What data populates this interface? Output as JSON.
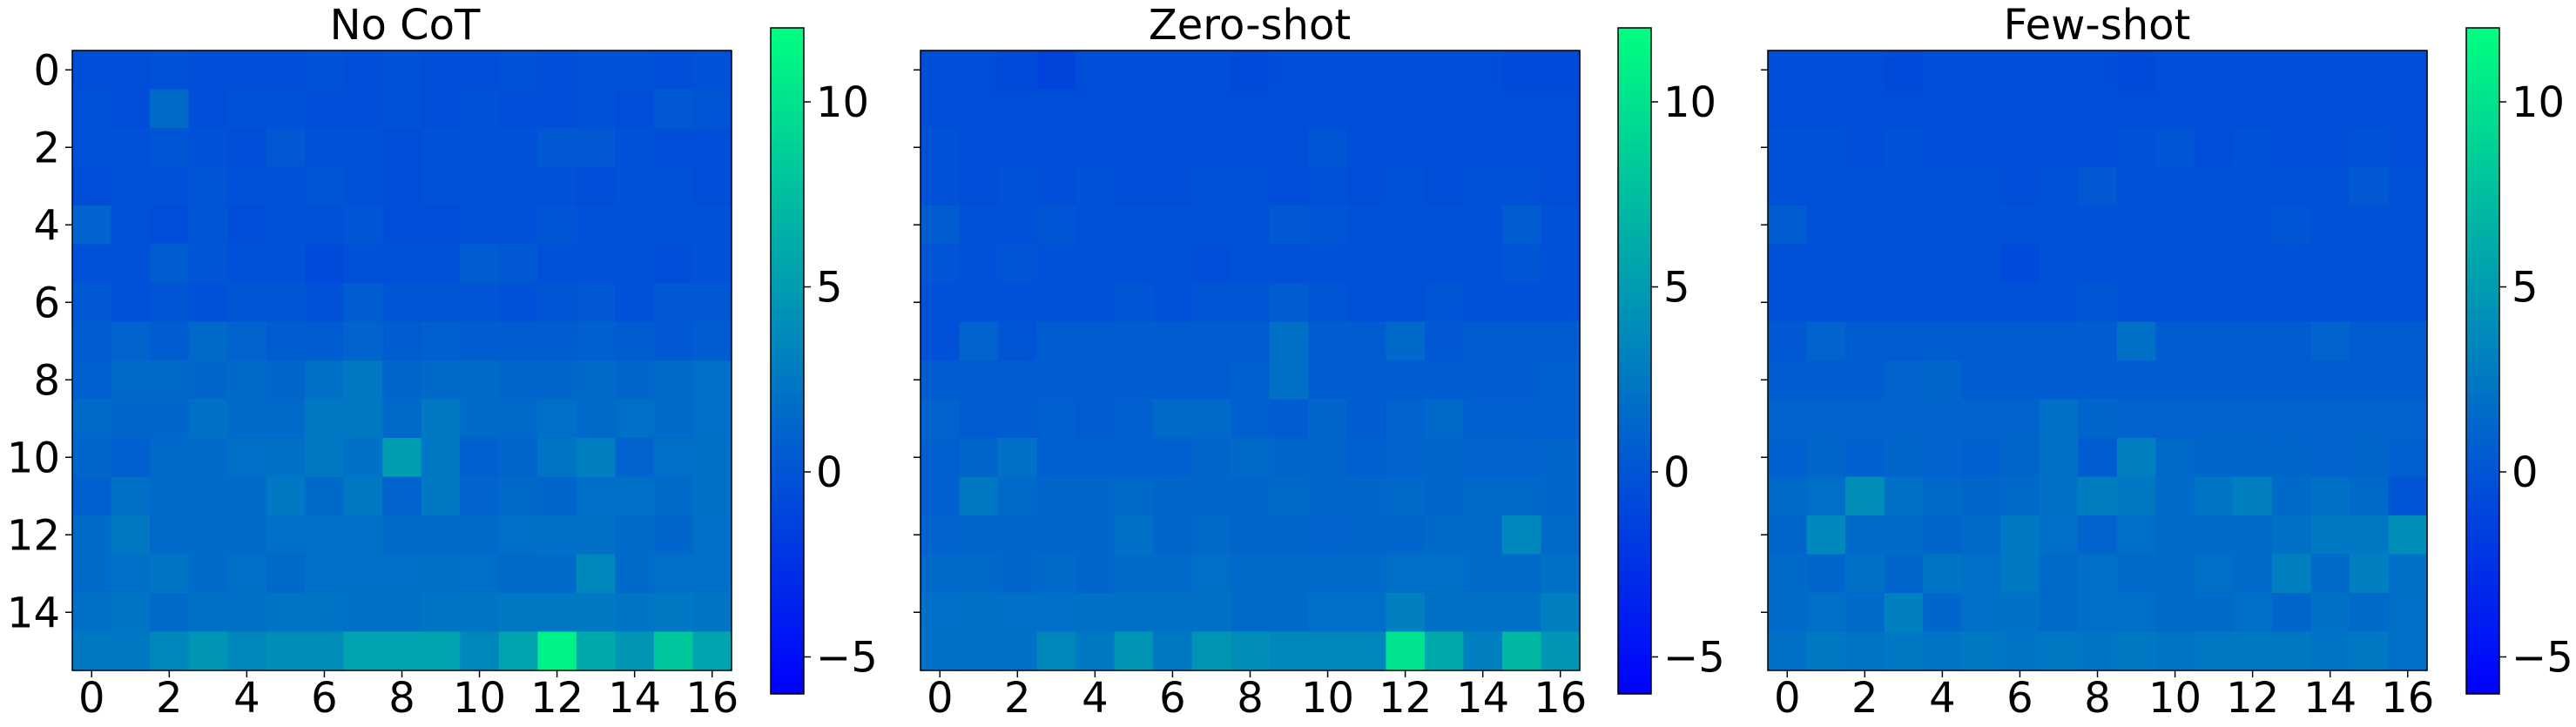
{
  "chart_data": [
    {
      "type": "heatmap",
      "title": "No CoT",
      "rows": 16,
      "cols": 17,
      "x_ticks": [
        0,
        2,
        4,
        6,
        8,
        10,
        12,
        14,
        16
      ],
      "y_ticks": [
        0,
        2,
        4,
        6,
        8,
        10,
        12,
        14
      ],
      "values": [
        [
          -0.5,
          -0.5,
          -0.3,
          -0.5,
          -0.5,
          -0.5,
          -0.3,
          -0.5,
          -0.3,
          -0.5,
          -0.5,
          -0.3,
          -0.5,
          -0.3,
          -0.3,
          -0.5,
          -0.3
        ],
        [
          -0.3,
          -0.5,
          1.5,
          -0.5,
          -0.3,
          -0.3,
          -0.5,
          -0.5,
          -0.3,
          -0.5,
          -0.3,
          -0.5,
          -0.5,
          -0.3,
          -0.5,
          0.2,
          0.0
        ],
        [
          -0.3,
          -0.3,
          0.0,
          -0.3,
          -0.5,
          0.2,
          -0.3,
          -0.3,
          -0.5,
          -0.3,
          -0.3,
          -0.3,
          0.2,
          0.2,
          -0.3,
          -0.5,
          -0.5
        ],
        [
          -0.5,
          -0.3,
          -0.3,
          0.0,
          -0.3,
          -0.3,
          0.0,
          -0.3,
          -0.5,
          -0.3,
          -0.3,
          -0.3,
          -0.3,
          -0.5,
          -0.3,
          -0.3,
          -0.5
        ],
        [
          1.0,
          -0.3,
          -0.5,
          0.0,
          -0.5,
          -0.3,
          -0.3,
          0.0,
          -0.5,
          -0.5,
          -0.3,
          -0.3,
          0.0,
          -0.3,
          -0.3,
          -0.3,
          -0.3
        ],
        [
          -0.3,
          -0.3,
          0.5,
          0.0,
          -0.3,
          -0.3,
          -0.8,
          -0.3,
          -0.3,
          -0.3,
          0.5,
          0.2,
          -0.3,
          -0.3,
          -0.3,
          -0.5,
          -0.3
        ],
        [
          0.2,
          -0.3,
          0.0,
          -0.3,
          0.0,
          0.0,
          -0.3,
          0.5,
          0.0,
          0.0,
          0.0,
          -0.3,
          0.0,
          0.2,
          -0.3,
          0.2,
          0.2
        ],
        [
          0.5,
          1.0,
          0.5,
          1.5,
          1.0,
          0.5,
          0.5,
          1.0,
          0.5,
          0.8,
          0.5,
          0.5,
          0.5,
          0.8,
          0.5,
          0.2,
          0.5
        ],
        [
          0.8,
          1.5,
          1.5,
          1.2,
          1.5,
          1.2,
          2.0,
          2.5,
          1.2,
          1.5,
          1.5,
          1.2,
          1.2,
          1.5,
          1.2,
          1.5,
          1.8
        ],
        [
          1.5,
          1.2,
          1.2,
          2.0,
          1.5,
          1.5,
          2.5,
          2.5,
          1.5,
          2.5,
          1.5,
          1.5,
          1.8,
          1.5,
          1.8,
          1.5,
          1.8
        ],
        [
          1.2,
          0.8,
          1.5,
          1.5,
          1.8,
          2.0,
          2.5,
          2.0,
          5.0,
          2.5,
          0.8,
          1.2,
          2.2,
          3.0,
          1.0,
          1.8,
          2.0
        ],
        [
          0.8,
          2.0,
          1.5,
          1.5,
          1.5,
          2.5,
          1.5,
          2.5,
          1.0,
          2.5,
          1.0,
          1.5,
          1.2,
          1.8,
          1.8,
          1.5,
          2.0
        ],
        [
          1.5,
          2.5,
          1.5,
          1.5,
          1.5,
          1.8,
          1.8,
          1.8,
          1.5,
          1.5,
          1.5,
          1.8,
          2.0,
          2.0,
          1.5,
          1.2,
          1.8
        ],
        [
          1.5,
          1.8,
          2.2,
          1.5,
          1.8,
          1.5,
          1.8,
          1.8,
          1.8,
          2.0,
          1.8,
          1.5,
          1.5,
          3.5,
          1.5,
          1.8,
          1.8
        ],
        [
          2.0,
          2.2,
          1.5,
          2.0,
          2.0,
          2.2,
          2.2,
          2.0,
          2.0,
          2.2,
          2.2,
          2.5,
          2.5,
          2.5,
          2.2,
          2.5,
          2.2
        ],
        [
          2.5,
          2.5,
          3.5,
          4.5,
          3.5,
          4.0,
          4.0,
          5.5,
          5.5,
          5.5,
          3.5,
          5.5,
          11.0,
          6.0,
          4.5,
          8.0,
          5.5
        ]
      ]
    },
    {
      "type": "heatmap",
      "title": "Zero-shot",
      "rows": 16,
      "cols": 17,
      "x_ticks": [
        0,
        2,
        4,
        6,
        8,
        10,
        12,
        14,
        16
      ],
      "y_ticks": [
        0,
        2,
        4,
        6,
        8,
        10,
        12,
        14
      ],
      "values": [
        [
          -0.5,
          -0.5,
          -0.8,
          -1.2,
          -0.5,
          -0.5,
          -0.5,
          -0.5,
          -0.8,
          -0.5,
          -0.5,
          -0.5,
          -0.5,
          -0.5,
          -0.5,
          -0.8,
          -0.8
        ],
        [
          -0.5,
          -0.5,
          -0.5,
          -0.5,
          -0.5,
          -0.5,
          -0.5,
          -0.5,
          -0.5,
          -0.5,
          -0.5,
          -0.5,
          -0.5,
          -0.5,
          -0.5,
          -0.5,
          -0.5
        ],
        [
          -0.3,
          -0.5,
          -0.5,
          -0.5,
          -0.5,
          -0.5,
          -0.5,
          -0.5,
          -0.5,
          -0.5,
          0.0,
          -0.5,
          -0.5,
          -0.5,
          -0.5,
          -0.5,
          -0.5
        ],
        [
          -0.3,
          -0.5,
          -0.3,
          -0.5,
          -0.3,
          -0.5,
          -0.5,
          -0.3,
          -0.3,
          -0.5,
          -0.3,
          -0.5,
          -0.3,
          -0.5,
          -0.3,
          -0.3,
          -0.5
        ],
        [
          0.5,
          -0.3,
          -0.3,
          0.0,
          -0.3,
          -0.3,
          -0.3,
          -0.3,
          -0.3,
          0.2,
          0.0,
          -0.3,
          -0.3,
          -0.3,
          -0.3,
          0.5,
          -0.3
        ],
        [
          0.0,
          -0.3,
          0.0,
          -0.3,
          -0.3,
          -0.3,
          -0.3,
          -0.5,
          -0.3,
          -0.3,
          -0.3,
          -0.3,
          -0.3,
          -0.3,
          -0.3,
          0.0,
          -0.3
        ],
        [
          -0.3,
          -0.3,
          -0.3,
          -0.3,
          -0.3,
          0.0,
          -0.3,
          0.0,
          0.0,
          0.5,
          0.0,
          -0.3,
          -0.3,
          0.0,
          -0.3,
          -0.3,
          -0.3
        ],
        [
          -0.3,
          1.0,
          0.0,
          0.5,
          0.5,
          0.5,
          0.5,
          0.5,
          0.5,
          2.0,
          0.5,
          0.5,
          1.5,
          0.2,
          0.5,
          0.5,
          0.5
        ],
        [
          0.5,
          0.5,
          0.5,
          0.5,
          0.5,
          0.5,
          0.5,
          0.5,
          0.8,
          2.0,
          0.5,
          0.5,
          0.5,
          0.5,
          0.5,
          0.5,
          0.8
        ],
        [
          1.0,
          0.5,
          0.5,
          0.8,
          0.5,
          0.8,
          1.5,
          1.5,
          0.8,
          0.5,
          1.2,
          0.5,
          1.0,
          1.5,
          0.8,
          0.8,
          0.8
        ],
        [
          0.8,
          1.2,
          2.0,
          0.8,
          0.8,
          0.8,
          0.8,
          1.2,
          1.5,
          1.2,
          1.2,
          0.8,
          1.0,
          1.2,
          1.0,
          1.0,
          1.2
        ],
        [
          0.8,
          2.5,
          1.5,
          1.2,
          1.2,
          1.5,
          1.2,
          1.2,
          1.2,
          1.5,
          1.2,
          1.2,
          1.5,
          1.2,
          1.5,
          1.5,
          1.2
        ],
        [
          1.0,
          1.2,
          1.2,
          1.2,
          1.2,
          2.0,
          1.2,
          1.5,
          1.2,
          1.2,
          1.0,
          1.2,
          1.2,
          1.5,
          1.5,
          3.5,
          1.5
        ],
        [
          1.5,
          1.5,
          1.2,
          1.5,
          1.2,
          1.5,
          1.5,
          1.8,
          1.5,
          1.5,
          1.5,
          1.5,
          1.8,
          1.8,
          1.5,
          1.5,
          2.0
        ],
        [
          1.8,
          2.0,
          1.8,
          1.8,
          2.0,
          2.0,
          2.0,
          2.0,
          1.5,
          1.5,
          1.8,
          1.8,
          3.0,
          2.0,
          2.0,
          2.0,
          3.0
        ],
        [
          2.0,
          2.0,
          2.0,
          3.5,
          2.5,
          4.5,
          2.5,
          4.5,
          4.0,
          3.5,
          3.5,
          3.5,
          10.0,
          6.0,
          3.0,
          7.0,
          4.5
        ]
      ]
    },
    {
      "type": "heatmap",
      "title": "Few-shot",
      "rows": 16,
      "cols": 17,
      "x_ticks": [
        0,
        2,
        4,
        6,
        8,
        10,
        12,
        14,
        16
      ],
      "y_ticks": [
        0,
        2,
        4,
        6,
        8,
        10,
        12,
        14
      ],
      "values": [
        [
          -0.5,
          -0.5,
          -0.5,
          -0.8,
          -0.5,
          -0.5,
          -0.5,
          -0.5,
          -0.5,
          -0.8,
          -0.5,
          -0.5,
          -0.5,
          -0.5,
          -0.5,
          -0.5,
          -0.5
        ],
        [
          -0.5,
          -0.5,
          -0.5,
          -0.5,
          -0.5,
          -0.5,
          -0.5,
          -0.5,
          -0.5,
          -0.5,
          -0.5,
          -0.5,
          -0.5,
          -0.5,
          -0.5,
          -0.5,
          -0.5
        ],
        [
          -0.3,
          -0.3,
          -0.5,
          -0.3,
          -0.5,
          -0.5,
          -0.5,
          -0.5,
          -0.5,
          -0.3,
          0.0,
          -0.5,
          -0.3,
          -0.5,
          -0.5,
          -0.3,
          -0.5
        ],
        [
          -0.3,
          -0.3,
          -0.3,
          -0.3,
          -0.3,
          -0.3,
          -0.5,
          -0.3,
          0.2,
          -0.3,
          -0.3,
          -0.3,
          -0.3,
          -0.3,
          -0.3,
          0.2,
          -0.3
        ],
        [
          0.5,
          -0.3,
          -0.3,
          -0.3,
          -0.3,
          -0.3,
          -0.3,
          -0.3,
          -0.3,
          -0.3,
          -0.3,
          -0.3,
          -0.3,
          0.0,
          -0.3,
          -0.3,
          -0.3
        ],
        [
          -0.3,
          -0.3,
          -0.3,
          -0.3,
          -0.3,
          -0.3,
          -0.8,
          -0.3,
          -0.3,
          -0.3,
          -0.3,
          -0.3,
          -0.3,
          -0.3,
          -0.3,
          -0.3,
          -0.3
        ],
        [
          -0.3,
          -0.3,
          -0.3,
          -0.3,
          -0.3,
          -0.3,
          -0.3,
          -0.3,
          0.0,
          -0.3,
          -0.3,
          -0.3,
          -0.3,
          -0.3,
          -0.3,
          -0.3,
          -0.3
        ],
        [
          0.2,
          1.0,
          0.5,
          0.5,
          0.5,
          0.5,
          0.5,
          0.5,
          0.5,
          2.0,
          0.5,
          0.5,
          0.5,
          0.5,
          1.0,
          0.5,
          0.5
        ],
        [
          0.5,
          0.5,
          0.5,
          1.0,
          1.2,
          0.5,
          0.5,
          0.5,
          0.5,
          0.5,
          0.5,
          0.5,
          0.5,
          0.5,
          0.5,
          0.5,
          0.5
        ],
        [
          1.0,
          1.0,
          1.0,
          1.0,
          1.0,
          1.0,
          1.0,
          2.0,
          1.2,
          1.0,
          1.0,
          1.0,
          1.0,
          1.0,
          1.0,
          1.0,
          1.0
        ],
        [
          0.8,
          1.2,
          0.8,
          1.2,
          1.0,
          0.8,
          1.2,
          2.0,
          0.5,
          3.0,
          1.5,
          1.2,
          1.2,
          1.2,
          1.0,
          1.2,
          0.8
        ],
        [
          1.5,
          1.8,
          4.0,
          2.0,
          1.5,
          1.2,
          1.5,
          2.0,
          2.8,
          2.5,
          1.5,
          2.2,
          3.0,
          1.5,
          2.0,
          1.5,
          0.0
        ],
        [
          1.2,
          3.5,
          1.5,
          1.5,
          1.2,
          1.5,
          2.5,
          1.8,
          1.0,
          1.8,
          1.5,
          1.5,
          1.5,
          2.0,
          2.5,
          2.5,
          4.0
        ],
        [
          1.5,
          1.2,
          2.0,
          1.2,
          2.2,
          1.8,
          2.5,
          1.5,
          1.8,
          1.5,
          1.5,
          1.8,
          1.5,
          3.0,
          1.5,
          3.0,
          2.0
        ],
        [
          1.5,
          1.8,
          1.5,
          3.0,
          1.2,
          1.8,
          2.0,
          1.5,
          1.8,
          1.8,
          1.5,
          1.5,
          1.8,
          1.2,
          2.0,
          1.5,
          1.8
        ],
        [
          2.0,
          2.5,
          2.2,
          2.5,
          2.2,
          2.5,
          2.2,
          2.5,
          2.2,
          2.5,
          2.2,
          2.5,
          2.5,
          2.5,
          2.2,
          2.5,
          1.8
        ]
      ]
    }
  ],
  "colorbar": {
    "min": -6,
    "max": 12,
    "ticks": [
      -5,
      0,
      5,
      10
    ],
    "tick_labels": [
      "−5",
      "0",
      "5",
      "10"
    ],
    "colormap": "winter",
    "color_low": "#0000ff",
    "color_high": "#00ff80"
  }
}
